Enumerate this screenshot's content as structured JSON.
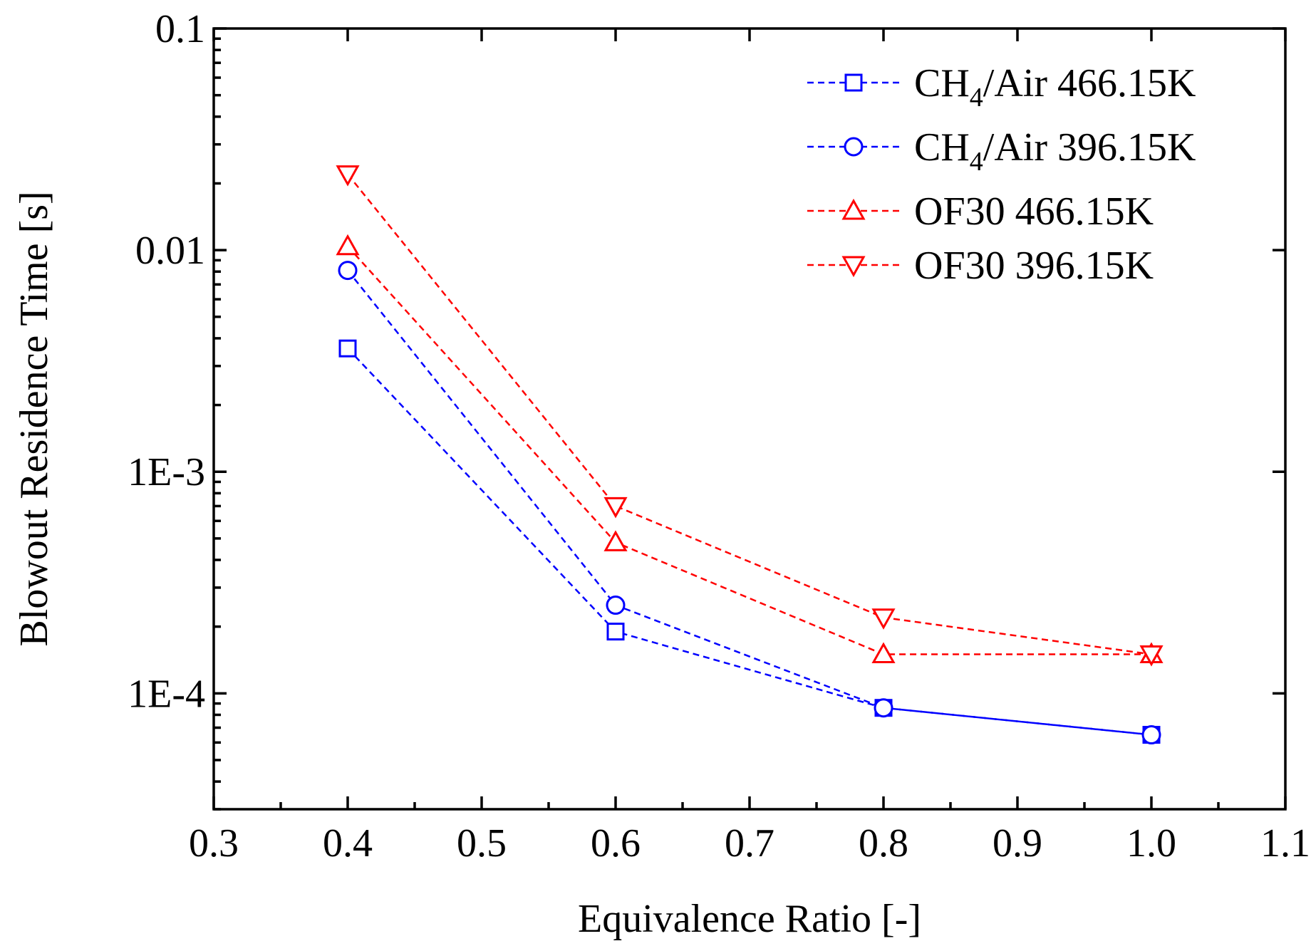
{
  "chart_data": {
    "type": "line",
    "title": "",
    "xlabel": "Equivalence Ratio [-]",
    "ylabel": "Blowout Residence Time [s]",
    "xlim": [
      0.3,
      1.1
    ],
    "ylim": [
      3e-05,
      0.1
    ],
    "yscale": "log",
    "x_ticks": [
      "0.3",
      "0.4",
      "0.5",
      "0.6",
      "0.7",
      "0.8",
      "0.9",
      "1.0",
      "1.1"
    ],
    "y_ticks": [
      {
        "value": 0.1,
        "label": "0.1"
      },
      {
        "value": 0.01,
        "label": "0.01"
      },
      {
        "value": 0.001,
        "label": "1E-3"
      },
      {
        "value": 0.0001,
        "label": "1E-4"
      }
    ],
    "legend_position": "top-right",
    "series": [
      {
        "name": "CH4/Air 466.15K",
        "label_main": "CH",
        "label_sub": "4",
        "label_rest": "/Air 466.15K",
        "marker": "square",
        "color": "#0000ff",
        "x": [
          0.4,
          0.6,
          0.8,
          1.0
        ],
        "values": [
          0.0036,
          0.00019,
          8.6e-05,
          6.5e-05
        ]
      },
      {
        "name": "CH4/Air 396.15K",
        "label_main": "CH",
        "label_sub": "4",
        "label_rest": "/Air 396.15K",
        "marker": "circle",
        "color": "#0000ff",
        "x": [
          0.4,
          0.6,
          0.8,
          1.0
        ],
        "values": [
          0.0081,
          0.00025,
          8.6e-05,
          6.5e-05
        ]
      },
      {
        "name": "OF30 466.15K",
        "label_main": "OF30 466.15K",
        "label_sub": "",
        "label_rest": "",
        "marker": "triangle-up",
        "color": "#ff0000",
        "x": [
          0.4,
          0.6,
          0.8,
          1.0
        ],
        "values": [
          0.0104,
          0.00048,
          0.00015,
          0.00015
        ]
      },
      {
        "name": "OF30 396.15K",
        "label_main": "OF30 396.15K",
        "label_sub": "",
        "label_rest": "",
        "marker": "triangle-down",
        "color": "#ff0000",
        "x": [
          0.4,
          0.6,
          0.8,
          1.0
        ],
        "values": [
          0.022,
          0.0007,
          0.00022,
          0.00015
        ]
      }
    ]
  }
}
